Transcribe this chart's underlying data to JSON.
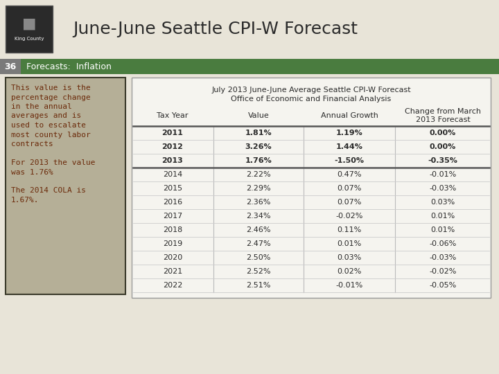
{
  "bg_color": "#e8e4d8",
  "title": "June-June Seattle CPI-W Forecast",
  "title_fontsize": 18,
  "title_color": "#2c2c2c",
  "header_bar_color": "#4a7c3f",
  "header_bar_text": "Forecasts:  Inflation",
  "header_bar_text_color": "#ffffff",
  "header_num": "36",
  "header_num_bg": "#7a7a7a",
  "sidebar_bg": "#b5af97",
  "sidebar_border": "#3a3a2a",
  "sidebar_text_lines": [
    "This value is the",
    "percentage change",
    "in the annual",
    "averages and is",
    "used to escalate",
    "most county labor",
    "contracts",
    "",
    "For 2013 the value",
    "was 1.76%",
    "",
    "The 2014 COLA is",
    "1.67%."
  ],
  "sidebar_text_color": "#6b2a0a",
  "table_title1": "July 2013 June-June Average Seattle CPI-W Forecast",
  "table_title2": "Office of Economic and Financial Analysis",
  "col_headers": [
    "Tax Year",
    "Value",
    "Annual Growth",
    "Change from March\n2013 Forecast"
  ],
  "rows": [
    [
      "2011",
      "1.81%",
      "1.19%",
      "0.00%"
    ],
    [
      "2012",
      "3.26%",
      "1.44%",
      "0.00%"
    ],
    [
      "2013",
      "1.76%",
      "-1.50%",
      "-0.35%"
    ],
    [
      "2014",
      "2.22%",
      "0.47%",
      "-0.01%"
    ],
    [
      "2015",
      "2.29%",
      "0.07%",
      "-0.03%"
    ],
    [
      "2016",
      "2.36%",
      "0.07%",
      "0.03%"
    ],
    [
      "2017",
      "2.34%",
      "-0.02%",
      "0.01%"
    ],
    [
      "2018",
      "2.46%",
      "0.11%",
      "0.01%"
    ],
    [
      "2019",
      "2.47%",
      "0.01%",
      "-0.06%"
    ],
    [
      "2020",
      "2.50%",
      "0.03%",
      "-0.03%"
    ],
    [
      "2021",
      "2.52%",
      "0.02%",
      "-0.02%"
    ],
    [
      "2022",
      "2.51%",
      "-0.01%",
      "-0.05%"
    ]
  ],
  "bold_rows": [
    0,
    1,
    2
  ],
  "separator_after_row": 2,
  "table_bg": "#f5f4ef",
  "logo_bg": "#2a2a2a",
  "logo_text_color": "#ffffff"
}
